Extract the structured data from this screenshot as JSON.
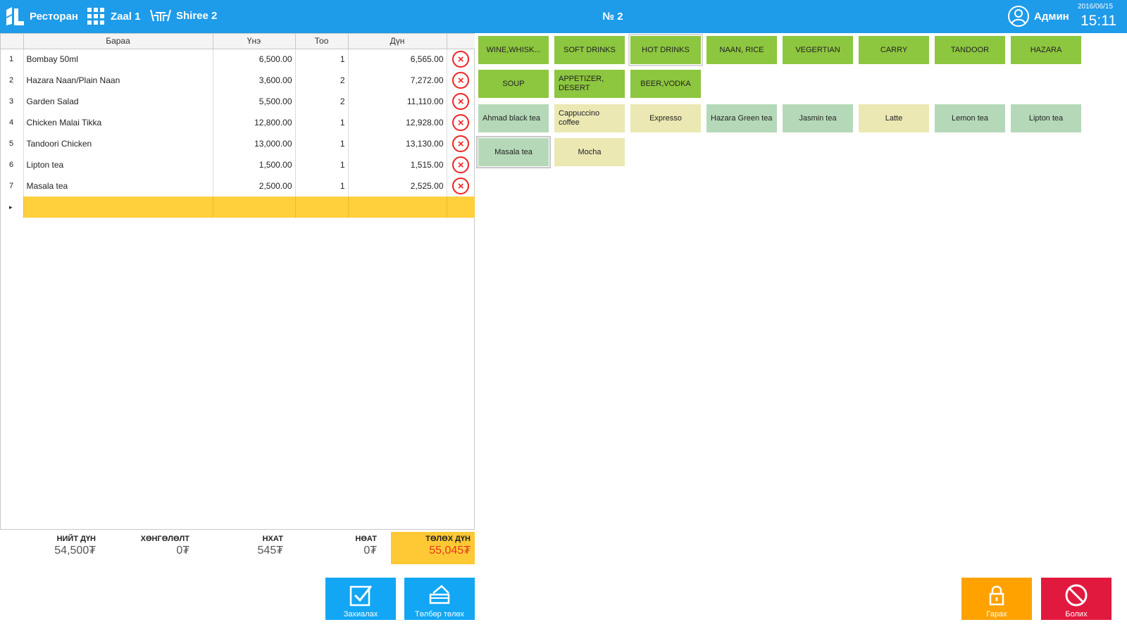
{
  "header": {
    "app_name": "Ресторан",
    "zone": "Zaal 1",
    "table": "Shiree 2",
    "order_no": "№ 2",
    "user": "Админ",
    "date": "2016/06/15",
    "time": "15:11"
  },
  "order": {
    "columns": [
      "Бараа",
      "Үнэ",
      "Тоо",
      "Дүн"
    ],
    "rows": [
      {
        "n": "1",
        "name": "Bombay 50ml",
        "price": "6,500.00",
        "qty": "1",
        "sum": "6,565.00"
      },
      {
        "n": "2",
        "name": "Hazara Naan/Plain Naan",
        "price": "3,600.00",
        "qty": "2",
        "sum": "7,272.00"
      },
      {
        "n": "3",
        "name": "Garden Salad",
        "price": "5,500.00",
        "qty": "2",
        "sum": "11,110.00"
      },
      {
        "n": "4",
        "name": "Chicken Malai Tikka",
        "price": "12,800.00",
        "qty": "1",
        "sum": "12,928.00"
      },
      {
        "n": "5",
        "name": "Tandoori Chicken",
        "price": "13,000.00",
        "qty": "1",
        "sum": "13,130.00"
      },
      {
        "n": "6",
        "name": "Lipton tea",
        "price": "1,500.00",
        "qty": "1",
        "sum": "1,515.00"
      },
      {
        "n": "7",
        "name": "Masala tea",
        "price": "2,500.00",
        "qty": "1",
        "sum": "2,525.00"
      }
    ],
    "new_row_marker": "▸"
  },
  "totals": {
    "total_label": "НИЙТ ДҮН",
    "total_value": "54,500₮",
    "discount_label": "ХӨНГӨЛӨЛТ",
    "discount_value": "0₮",
    "nhat_label": "НХАТ",
    "nhat_value": "545₮",
    "noat_label": "НӨАТ",
    "noat_value": "0₮",
    "pay_label": "ТӨЛӨХ ДҮН",
    "pay_value": "55,045₮"
  },
  "categories": [
    "WINE,WHISK...",
    "SOFT DRINKS",
    "HOT DRINKS",
    "NAAN, RICE",
    "VEGERTIAN",
    "CARRY",
    "TANDOOR",
    "HAZARA",
    "SOUP",
    "APPETIZER, DESERT",
    "BEER,VODKA"
  ],
  "selected_category": "HOT DRINKS",
  "products": [
    "Ahmad black tea",
    "Cappuccino coffee",
    "Expresso",
    "Hazara Green tea",
    "Jasmin tea",
    "Latte",
    "Lemon tea",
    "Lipton tea",
    "Masala tea",
    "Mocha"
  ],
  "selected_product": "Masala tea",
  "buttons": {
    "order": "Захиалах",
    "pay": "Төлбөр төлөх",
    "exit": "Гарах",
    "cancel": "Болих"
  },
  "colors": {
    "header": "#1e9be9",
    "category": "#8dc63f",
    "product_green": "#b5d9b8",
    "product_yellow": "#ebe8b3",
    "pay_highlight": "#ffc935",
    "delete": "#ee2222"
  }
}
